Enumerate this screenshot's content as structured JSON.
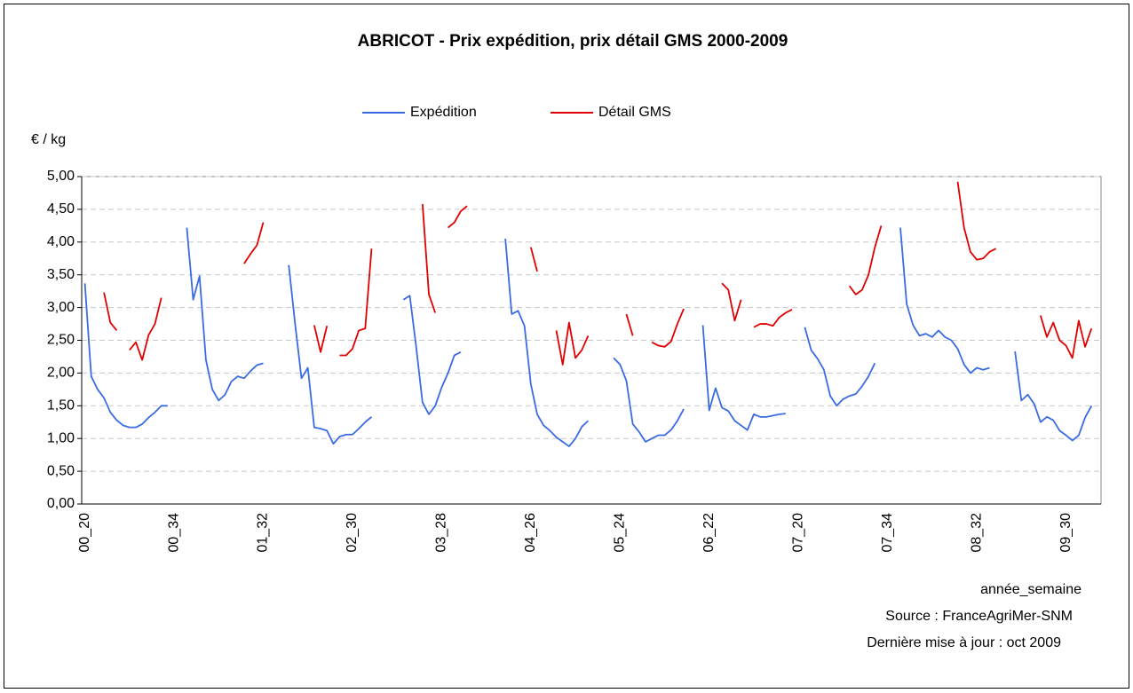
{
  "chart_data": {
    "type": "line",
    "title": "ABRICOT - Prix expédition, prix détail GMS  2000-2009",
    "y_label": "€ / kg",
    "x_label": "année_semaine",
    "source": "Source : FranceAgriMer-SNM",
    "updated": "Dernière mise à jour : oct 2009",
    "legend": "top",
    "grid": true,
    "ylim": [
      0,
      5
    ],
    "yticks": [
      {
        "value": 0,
        "label": "0,00"
      },
      {
        "value": 0.5,
        "label": "0,50"
      },
      {
        "value": 1,
        "label": "1,00"
      },
      {
        "value": 1.5,
        "label": "1,50"
      },
      {
        "value": 2,
        "label": "2,00"
      },
      {
        "value": 2.5,
        "label": "2,50"
      },
      {
        "value": 3,
        "label": "3,00"
      },
      {
        "value": 3.5,
        "label": "3,50"
      },
      {
        "value": 4,
        "label": "4,00"
      },
      {
        "value": 4.5,
        "label": "4,50"
      },
      {
        "value": 5,
        "label": "5,00"
      }
    ],
    "categories": [
      "00_20",
      null,
      null,
      null,
      null,
      null,
      null,
      null,
      null,
      null,
      null,
      null,
      null,
      null,
      "00_34",
      null,
      null,
      null,
      null,
      null,
      null,
      null,
      null,
      null,
      null,
      null,
      null,
      null,
      "01_32",
      null,
      null,
      null,
      null,
      null,
      null,
      null,
      null,
      null,
      null,
      null,
      null,
      null,
      "02_30",
      null,
      null,
      null,
      null,
      null,
      null,
      null,
      null,
      null,
      null,
      null,
      null,
      null,
      "03_28",
      null,
      null,
      null,
      null,
      null,
      null,
      null,
      null,
      null,
      null,
      null,
      null,
      null,
      "04_26",
      null,
      null,
      null,
      null,
      null,
      null,
      null,
      null,
      null,
      null,
      null,
      null,
      null,
      "05_24",
      null,
      null,
      null,
      null,
      null,
      null,
      null,
      null,
      null,
      null,
      null,
      null,
      null,
      "06_22",
      null,
      null,
      null,
      null,
      null,
      null,
      null,
      null,
      null,
      null,
      null,
      null,
      null,
      "07_20",
      null,
      null,
      null,
      null,
      null,
      null,
      null,
      null,
      null,
      null,
      null,
      null,
      null,
      "07_34",
      null,
      null,
      null,
      null,
      null,
      null,
      null,
      null,
      null,
      null,
      null,
      null,
      null,
      "08_32",
      null,
      null,
      null,
      null,
      null,
      null,
      null,
      null,
      null,
      null,
      null,
      null,
      null,
      "09_30",
      null,
      null,
      null,
      null,
      null
    ],
    "series": [
      {
        "name": "Expédition",
        "color": "#3a6be3",
        "values": [
          3.37,
          1.95,
          1.75,
          1.62,
          1.4,
          1.28,
          1.2,
          1.17,
          1.17,
          1.22,
          1.32,
          1.4,
          1.5,
          1.5,
          null,
          null,
          4.22,
          3.12,
          3.48,
          2.2,
          1.75,
          1.58,
          1.67,
          1.87,
          1.95,
          1.92,
          2.03,
          2.12,
          2.15,
          null,
          null,
          null,
          3.65,
          2.75,
          1.92,
          2.08,
          1.17,
          1.15,
          1.12,
          0.92,
          1.03,
          1.06,
          1.06,
          1.15,
          1.25,
          1.33,
          null,
          null,
          null,
          null,
          3.12,
          3.18,
          2.4,
          1.55,
          1.37,
          1.5,
          1.78,
          2.0,
          2.27,
          2.32,
          null,
          null,
          null,
          null,
          null,
          null,
          4.05,
          2.9,
          2.95,
          2.72,
          1.83,
          1.37,
          1.2,
          1.12,
          1.02,
          0.95,
          0.88,
          1.0,
          1.18,
          1.27,
          null,
          null,
          null,
          2.23,
          2.13,
          1.88,
          1.22,
          1.1,
          0.95,
          1.0,
          1.05,
          1.05,
          1.13,
          1.27,
          1.45,
          null,
          null,
          2.73,
          1.43,
          1.77,
          1.47,
          1.42,
          1.27,
          1.2,
          1.13,
          1.37,
          1.33,
          1.33,
          1.35,
          1.37,
          1.38,
          null,
          null,
          2.7,
          2.35,
          2.22,
          2.05,
          1.65,
          1.5,
          1.6,
          1.65,
          1.68,
          1.8,
          1.95,
          2.15,
          null,
          null,
          null,
          4.22,
          3.05,
          2.73,
          2.57,
          2.6,
          2.55,
          2.65,
          2.55,
          2.5,
          2.37,
          2.13,
          2.0,
          2.08,
          2.05,
          2.08,
          null,
          null,
          null,
          2.33,
          1.58,
          1.67,
          1.53,
          1.25,
          1.33,
          1.28,
          1.12,
          1.05,
          0.97,
          1.05,
          1.32,
          1.5,
          null
        ]
      },
      {
        "name": "Détail GMS",
        "color": "#e00000",
        "values": [
          null,
          null,
          null,
          3.23,
          2.77,
          2.65,
          null,
          2.35,
          2.47,
          2.2,
          2.58,
          2.75,
          3.15,
          null,
          null,
          null,
          null,
          null,
          null,
          null,
          null,
          null,
          null,
          null,
          null,
          3.67,
          3.82,
          3.95,
          4.3,
          null,
          null,
          null,
          null,
          null,
          null,
          null,
          2.73,
          2.32,
          2.72,
          null,
          2.27,
          2.27,
          2.37,
          2.65,
          2.68,
          3.9,
          null,
          null,
          null,
          null,
          null,
          null,
          null,
          4.58,
          3.2,
          2.92,
          null,
          4.22,
          4.3,
          4.47,
          4.55,
          null,
          null,
          null,
          null,
          null,
          null,
          null,
          null,
          null,
          3.92,
          3.55,
          null,
          null,
          2.65,
          2.13,
          2.77,
          2.23,
          2.35,
          2.57,
          null,
          null,
          null,
          null,
          null,
          2.9,
          2.57,
          null,
          null,
          2.47,
          2.42,
          2.4,
          2.48,
          2.75,
          2.98,
          null,
          null,
          null,
          null,
          null,
          3.37,
          3.27,
          2.8,
          3.12,
          null,
          2.7,
          2.75,
          2.75,
          2.72,
          2.85,
          2.92,
          2.97,
          null,
          null,
          null,
          null,
          null,
          null,
          null,
          null,
          3.33,
          3.2,
          3.27,
          3.5,
          3.92,
          4.25,
          null,
          null,
          null,
          null,
          null,
          null,
          null,
          null,
          null,
          null,
          null,
          4.92,
          4.22,
          3.85,
          3.73,
          3.75,
          3.85,
          3.9,
          null,
          null,
          null,
          null,
          null,
          null,
          2.88,
          2.55,
          2.77,
          2.5,
          2.42,
          2.23,
          2.8,
          2.4,
          2.68,
          null
        ]
      }
    ]
  }
}
